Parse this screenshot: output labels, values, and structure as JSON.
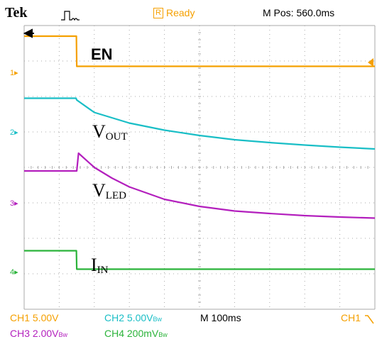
{
  "header": {
    "brand": "Tek",
    "status_icon": "pulse-waveform-icon",
    "trigger_badge": "R",
    "status": "Ready",
    "mpos": "M Pos: 560.0ms"
  },
  "channel_markers": [
    "1",
    "2",
    "3",
    "4"
  ],
  "footer": {
    "ch1": "CH1  5.00V",
    "ch2": "CH2  5.00V",
    "ch2_bw": "Bw",
    "ch3": "CH3  2.00V",
    "ch3_bw": "Bw",
    "ch4": "CH4  200mV",
    "ch4_bw": "Bw",
    "timebase": "M 100ms",
    "trigger": "CH1",
    "trigger_slope_icon": "falling-edge-icon"
  },
  "colors": {
    "ch1": "#f5a000",
    "ch2": "#19bec6",
    "ch3": "#b31fbd",
    "ch4": "#2bb33a",
    "grid": "#a8a8a8",
    "text": "#000000"
  },
  "chart_data": {
    "type": "line",
    "x_unit": "division",
    "y_unit": "division",
    "xlim": [
      0,
      10
    ],
    "ylim": [
      -4,
      4
    ],
    "grid": true,
    "series": [
      {
        "key": "ch1",
        "name": "EN",
        "name_sub": "",
        "x": [
          0,
          1.49,
          1.5,
          10
        ],
        "y": [
          3.7,
          3.7,
          2.85,
          2.85
        ]
      },
      {
        "key": "ch2",
        "name": "V",
        "name_sub": "OUT",
        "x": [
          0,
          1.48,
          1.5,
          2.0,
          3.0,
          4.0,
          5.0,
          6.0,
          7.0,
          8.0,
          9.0,
          10.0
        ],
        "y": [
          1.95,
          1.95,
          1.9,
          1.55,
          1.25,
          1.05,
          0.9,
          0.78,
          0.7,
          0.63,
          0.57,
          0.52
        ]
      },
      {
        "key": "ch3",
        "name": "V",
        "name_sub": "LED",
        "x": [
          0,
          1.48,
          1.5,
          1.55,
          2.0,
          2.5,
          3.0,
          4.0,
          5.0,
          6.0,
          7.0,
          8.0,
          9.0,
          10.0
        ],
        "y": [
          -0.1,
          -0.1,
          -0.1,
          0.4,
          0.0,
          -0.3,
          -0.55,
          -0.9,
          -1.1,
          -1.23,
          -1.3,
          -1.36,
          -1.4,
          -1.43
        ]
      },
      {
        "key": "ch4",
        "name": "I",
        "name_sub": "IN",
        "x": [
          0,
          1.49,
          1.5,
          10
        ],
        "y": [
          -2.35,
          -2.35,
          -2.87,
          -2.87
        ]
      }
    ]
  }
}
